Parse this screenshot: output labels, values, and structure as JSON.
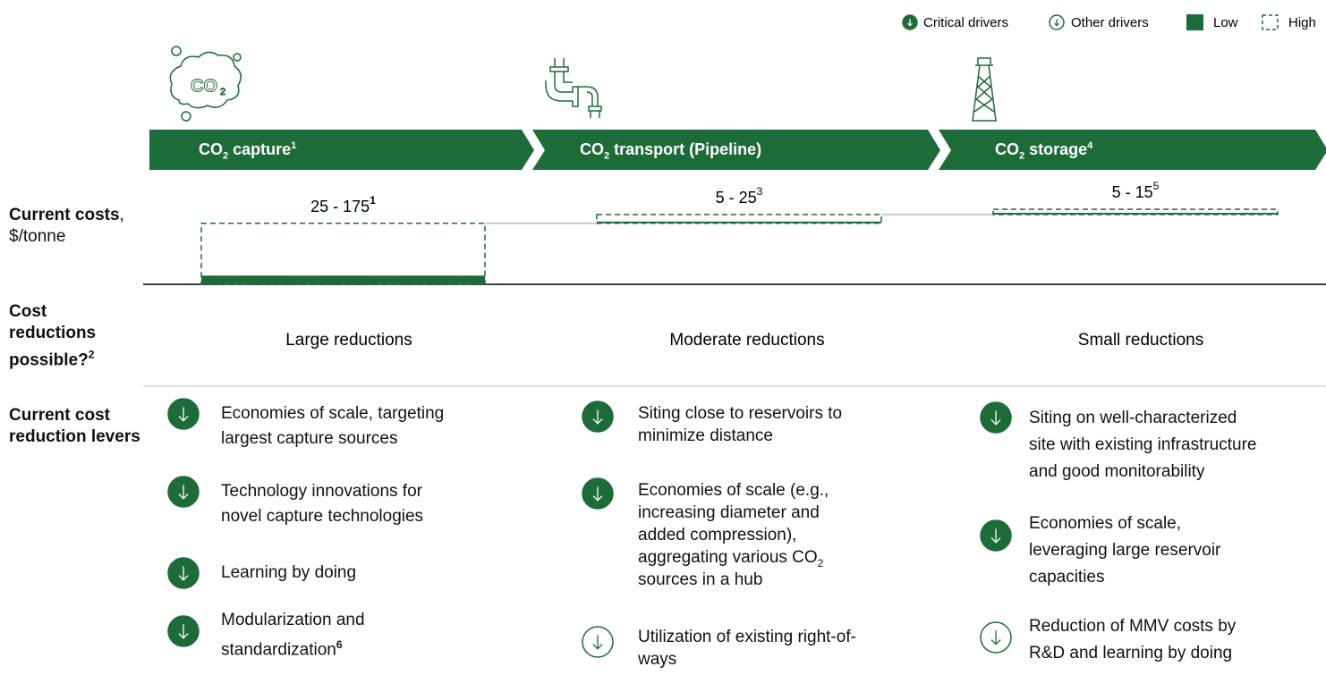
{
  "legend": {
    "critical": "Critical drivers",
    "other": "Other drivers",
    "low": "Low",
    "high": "High"
  },
  "row_labels": {
    "costs": {
      "bold": "Current costs",
      "rest": ", $/tonne"
    },
    "reductions": {
      "bold": "Cost reductions possible?",
      "sup": "2"
    },
    "levers": {
      "bold": "Current cost reduction levers"
    }
  },
  "stages": [
    {
      "name": {
        "pre": "CO",
        "sub": "2",
        "post": " capture",
        "sup": "1"
      },
      "cost": {
        "label": "25 - 175",
        "sup": "1",
        "low": 25,
        "high": 175
      },
      "reduction": "Large reductions",
      "levers": [
        {
          "critical": true,
          "lines": [
            "Economies of scale, targeting",
            "largest capture sources"
          ]
        },
        {
          "critical": true,
          "lines": [
            "Technology innovations for",
            "novel capture technologies"
          ]
        },
        {
          "critical": true,
          "lines": [
            "Learning by doing"
          ]
        },
        {
          "critical": true,
          "lines": [
            "Modularization and",
            {
              "t": "standardization",
              "sup": "6"
            }
          ]
        }
      ]
    },
    {
      "name": {
        "pre": "CO",
        "sub": "2",
        "post": " transport (Pipeline)"
      },
      "cost": {
        "label": "5 - 25",
        "sup": "3",
        "low": 5,
        "high": 25
      },
      "reduction": "Moderate reductions",
      "levers": [
        {
          "critical": true,
          "lines": [
            "Siting close to reservoirs to",
            "minimize distance"
          ]
        },
        {
          "critical": true,
          "lines": [
            "Economies of scale (e.g.,",
            "increasing diameter and",
            "added compression),",
            {
              "t": "aggregating various CO",
              "sub": "2"
            },
            "sources in a hub"
          ]
        },
        {
          "critical": false,
          "lines": [
            "Utilization of existing right-of-",
            "ways"
          ]
        }
      ]
    },
    {
      "name": {
        "pre": "CO",
        "sub": "2",
        "post": " storage",
        "sup": "4"
      },
      "cost": {
        "label": "5 - 15",
        "sup": "5",
        "low": 5,
        "high": 15
      },
      "reduction": "Small reductions",
      "levers": [
        {
          "critical": true,
          "lines": [
            "Siting on well-characterized",
            "site with existing infrastructure",
            "and good monitorability"
          ]
        },
        {
          "critical": true,
          "lines": [
            "Economies of scale,",
            "leveraging large reservoir",
            "capacities"
          ]
        },
        {
          "critical": false,
          "lines": [
            "Reduction of MMV costs by",
            "R&D and learning by doing"
          ]
        }
      ]
    }
  ]
}
